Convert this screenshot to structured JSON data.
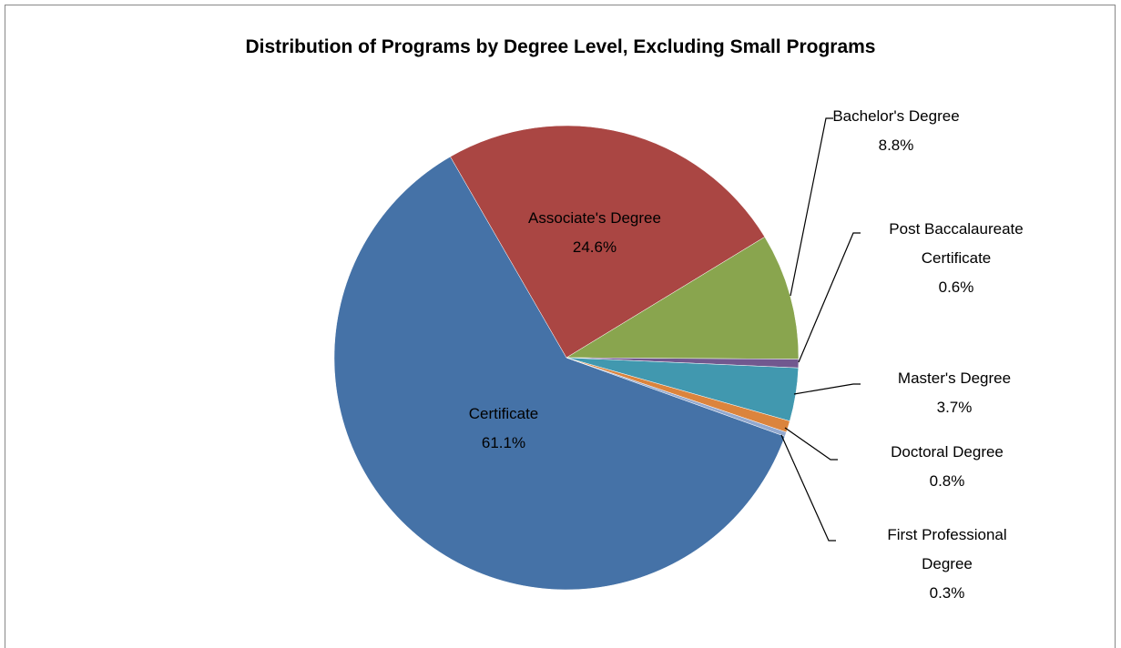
{
  "chart_data": {
    "type": "pie",
    "title": "Distribution of Programs by Degree Level, Excluding Small Programs",
    "categories": [
      "Certificate",
      "Associate's Degree",
      "Bachelor's Degree",
      "Post Baccalaureate Certificate",
      "Master's Degree",
      "Doctoral Degree",
      "First Professional Degree"
    ],
    "values": [
      61.1,
      24.6,
      8.8,
      0.6,
      3.7,
      0.8,
      0.3
    ],
    "value_labels": [
      "61.1%",
      "24.6%",
      "8.8%",
      "0.6%",
      "3.7%",
      "0.8%",
      "0.3%"
    ],
    "colors": [
      "#4572a7",
      "#aa4643",
      "#89a54e",
      "#71588f",
      "#4198af",
      "#db843d",
      "#93a9cf"
    ]
  }
}
